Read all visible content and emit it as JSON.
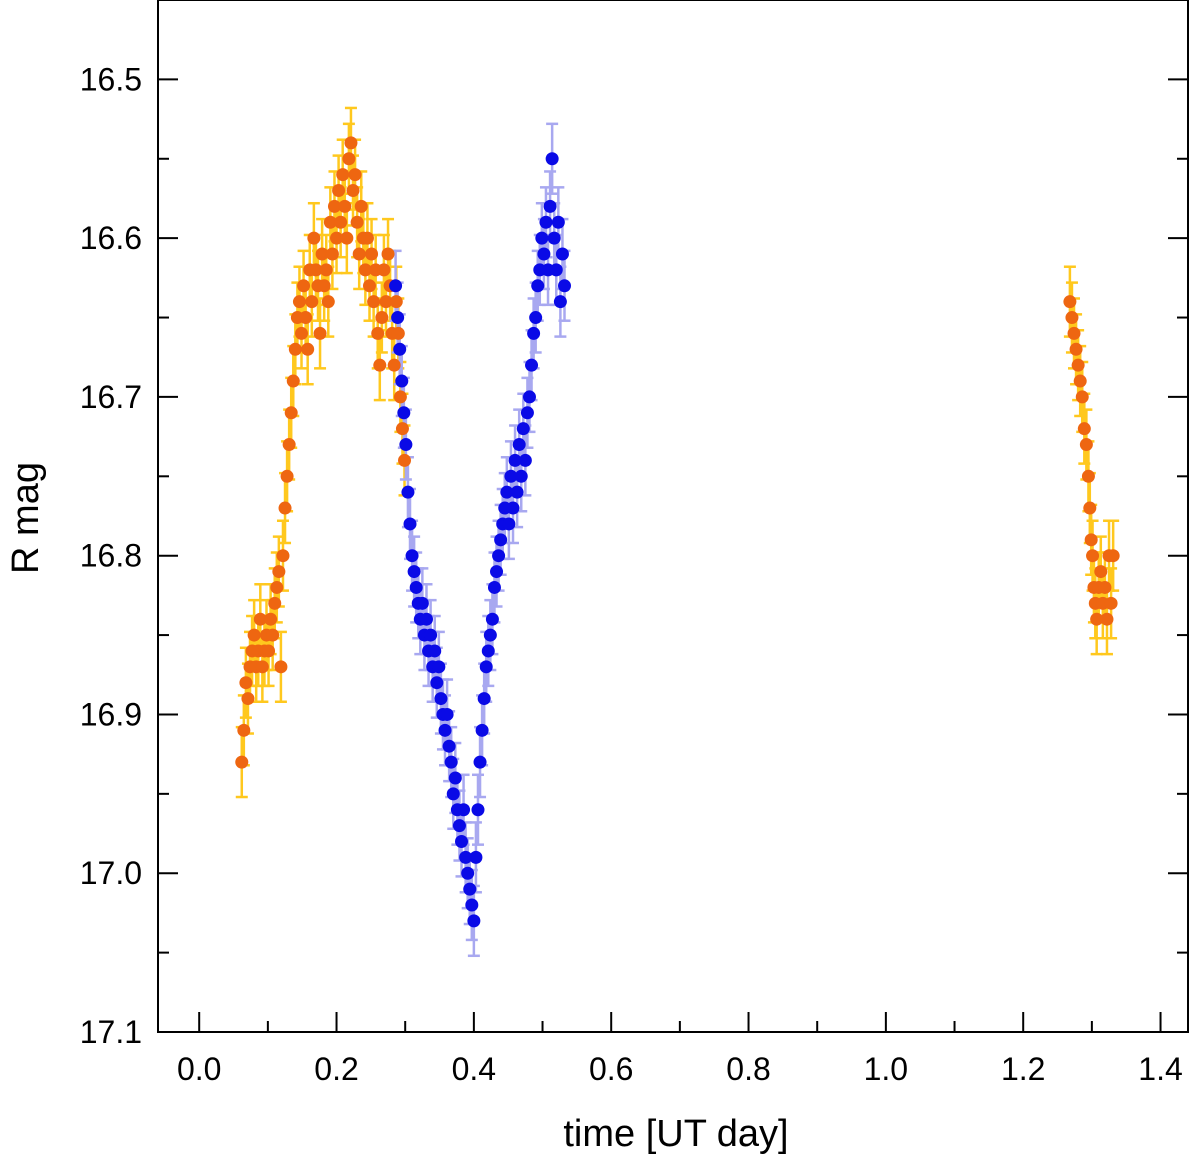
{
  "chart_data": {
    "type": "scatter",
    "title": "",
    "xlabel": "time [UT day]",
    "ylabel": "R mag",
    "xlim": [
      -0.06,
      1.44
    ],
    "ylim": [
      17.1,
      16.45
    ],
    "y_inverted": true,
    "x_ticks": [
      0.0,
      0.2,
      0.4,
      0.6,
      0.8,
      1.0,
      1.2,
      1.4
    ],
    "x_tick_labels": [
      "0.0",
      "0.2",
      "0.4",
      "0.6",
      "0.8",
      "1.0",
      "1.2",
      "1.4"
    ],
    "x_minor_ticks": [
      0.1,
      0.3,
      0.5,
      0.7,
      0.9,
      1.1,
      1.3
    ],
    "y_ticks": [
      16.5,
      16.6,
      16.7,
      16.8,
      16.9,
      17.0,
      17.1
    ],
    "y_tick_labels": [
      "16.5",
      "16.6",
      "16.7",
      "16.8",
      "16.9",
      "17.0",
      "17.1"
    ],
    "y_minor_ticks": [
      16.55,
      16.65,
      16.75,
      16.85,
      16.95,
      17.05
    ],
    "grid": false,
    "legend": "none",
    "series": [
      {
        "color": "#ee6611",
        "error_color": "#ffc81e",
        "error_typical": 0.022,
        "points": [
          [
            0.062,
            16.93
          ],
          [
            0.065,
            16.91
          ],
          [
            0.068,
            16.88
          ],
          [
            0.071,
            16.89
          ],
          [
            0.074,
            16.87
          ],
          [
            0.077,
            16.86
          ],
          [
            0.08,
            16.85
          ],
          [
            0.083,
            16.87
          ],
          [
            0.086,
            16.86
          ],
          [
            0.089,
            16.84
          ],
          [
            0.092,
            16.87
          ],
          [
            0.095,
            16.86
          ],
          [
            0.098,
            16.85
          ],
          [
            0.101,
            16.86
          ],
          [
            0.104,
            16.84
          ],
          [
            0.107,
            16.85
          ],
          [
            0.11,
            16.83
          ],
          [
            0.113,
            16.82
          ],
          [
            0.116,
            16.81
          ],
          [
            0.119,
            16.87
          ],
          [
            0.122,
            16.8
          ],
          [
            0.125,
            16.77
          ],
          [
            0.128,
            16.75
          ],
          [
            0.131,
            16.73
          ],
          [
            0.134,
            16.71
          ],
          [
            0.137,
            16.69
          ],
          [
            0.14,
            16.67
          ],
          [
            0.143,
            16.65
          ],
          [
            0.146,
            16.64
          ],
          [
            0.149,
            16.66
          ],
          [
            0.152,
            16.63
          ],
          [
            0.155,
            16.65
          ],
          [
            0.158,
            16.67
          ],
          [
            0.161,
            16.62
          ],
          [
            0.164,
            16.64
          ],
          [
            0.167,
            16.6
          ],
          [
            0.17,
            16.62
          ],
          [
            0.173,
            16.63
          ],
          [
            0.176,
            16.66
          ],
          [
            0.179,
            16.61
          ],
          [
            0.182,
            16.63
          ],
          [
            0.185,
            16.62
          ],
          [
            0.188,
            16.64
          ],
          [
            0.191,
            16.59
          ],
          [
            0.194,
            16.61
          ],
          [
            0.197,
            16.58
          ],
          [
            0.2,
            16.6
          ],
          [
            0.203,
            16.57
          ],
          [
            0.206,
            16.59
          ],
          [
            0.209,
            16.56
          ],
          [
            0.212,
            16.58
          ],
          [
            0.215,
            16.6
          ],
          [
            0.218,
            16.55
          ],
          [
            0.221,
            16.54
          ],
          [
            0.224,
            16.57
          ],
          [
            0.227,
            16.56
          ],
          [
            0.23,
            16.59
          ],
          [
            0.233,
            16.61
          ],
          [
            0.236,
            16.58
          ],
          [
            0.239,
            16.6
          ],
          [
            0.242,
            16.62
          ],
          [
            0.245,
            16.6
          ],
          [
            0.248,
            16.63
          ],
          [
            0.251,
            16.61
          ],
          [
            0.254,
            16.64
          ],
          [
            0.257,
            16.62
          ],
          [
            0.26,
            16.66
          ],
          [
            0.263,
            16.68
          ],
          [
            0.266,
            16.65
          ],
          [
            0.269,
            16.62
          ],
          [
            0.272,
            16.64
          ],
          [
            0.275,
            16.61
          ],
          [
            0.278,
            16.63
          ],
          [
            0.281,
            16.66
          ],
          [
            0.284,
            16.68
          ],
          [
            0.287,
            16.64
          ],
          [
            0.29,
            16.66
          ],
          [
            0.293,
            16.7
          ],
          [
            0.296,
            16.72
          ],
          [
            0.299,
            16.74
          ],
          [
            1.268,
            16.64
          ],
          [
            1.271,
            16.65
          ],
          [
            1.274,
            16.66
          ],
          [
            1.277,
            16.67
          ],
          [
            1.28,
            16.68
          ],
          [
            1.283,
            16.69
          ],
          [
            1.286,
            16.7
          ],
          [
            1.289,
            16.72
          ],
          [
            1.292,
            16.73
          ],
          [
            1.295,
            16.75
          ],
          [
            1.297,
            16.77
          ],
          [
            1.299,
            16.79
          ],
          [
            1.301,
            16.8
          ],
          [
            1.303,
            16.82
          ],
          [
            1.305,
            16.83
          ],
          [
            1.307,
            16.84
          ],
          [
            1.31,
            16.82
          ],
          [
            1.313,
            16.81
          ],
          [
            1.316,
            16.83
          ],
          [
            1.319,
            16.82
          ],
          [
            1.322,
            16.84
          ],
          [
            1.325,
            16.8
          ],
          [
            1.328,
            16.83
          ],
          [
            1.331,
            16.8
          ]
        ]
      },
      {
        "color": "#0a0ae6",
        "error_color": "#a8a8f0",
        "error_typical": 0.022,
        "points": [
          [
            0.286,
            16.63
          ],
          [
            0.289,
            16.65
          ],
          [
            0.292,
            16.67
          ],
          [
            0.295,
            16.69
          ],
          [
            0.298,
            16.71
          ],
          [
            0.301,
            16.73
          ],
          [
            0.304,
            16.76
          ],
          [
            0.307,
            16.78
          ],
          [
            0.31,
            16.8
          ],
          [
            0.313,
            16.81
          ],
          [
            0.316,
            16.82
          ],
          [
            0.319,
            16.83
          ],
          [
            0.322,
            16.84
          ],
          [
            0.325,
            16.83
          ],
          [
            0.328,
            16.85
          ],
          [
            0.331,
            16.84
          ],
          [
            0.334,
            16.86
          ],
          [
            0.337,
            16.85
          ],
          [
            0.34,
            16.87
          ],
          [
            0.343,
            16.86
          ],
          [
            0.346,
            16.88
          ],
          [
            0.349,
            16.87
          ],
          [
            0.352,
            16.89
          ],
          [
            0.355,
            16.9
          ],
          [
            0.358,
            16.91
          ],
          [
            0.361,
            16.9
          ],
          [
            0.364,
            16.92
          ],
          [
            0.367,
            16.93
          ],
          [
            0.37,
            16.95
          ],
          [
            0.373,
            16.94
          ],
          [
            0.376,
            16.96
          ],
          [
            0.379,
            16.97
          ],
          [
            0.382,
            16.98
          ],
          [
            0.385,
            16.96
          ],
          [
            0.388,
            16.99
          ],
          [
            0.391,
            17.0
          ],
          [
            0.394,
            17.01
          ],
          [
            0.397,
            17.02
          ],
          [
            0.4,
            17.03
          ],
          [
            0.403,
            16.99
          ],
          [
            0.406,
            16.96
          ],
          [
            0.409,
            16.93
          ],
          [
            0.412,
            16.91
          ],
          [
            0.415,
            16.89
          ],
          [
            0.418,
            16.87
          ],
          [
            0.421,
            16.86
          ],
          [
            0.424,
            16.85
          ],
          [
            0.427,
            16.84
          ],
          [
            0.43,
            16.82
          ],
          [
            0.433,
            16.81
          ],
          [
            0.436,
            16.8
          ],
          [
            0.439,
            16.79
          ],
          [
            0.442,
            16.78
          ],
          [
            0.445,
            16.77
          ],
          [
            0.448,
            16.76
          ],
          [
            0.451,
            16.78
          ],
          [
            0.454,
            16.75
          ],
          [
            0.457,
            16.77
          ],
          [
            0.46,
            16.74
          ],
          [
            0.463,
            16.76
          ],
          [
            0.466,
            16.73
          ],
          [
            0.469,
            16.75
          ],
          [
            0.472,
            16.72
          ],
          [
            0.475,
            16.74
          ],
          [
            0.478,
            16.71
          ],
          [
            0.481,
            16.7
          ],
          [
            0.484,
            16.68
          ],
          [
            0.487,
            16.66
          ],
          [
            0.49,
            16.65
          ],
          [
            0.493,
            16.63
          ],
          [
            0.496,
            16.62
          ],
          [
            0.499,
            16.6
          ],
          [
            0.502,
            16.61
          ],
          [
            0.505,
            16.59
          ],
          [
            0.508,
            16.62
          ],
          [
            0.511,
            16.58
          ],
          [
            0.514,
            16.55
          ],
          [
            0.517,
            16.6
          ],
          [
            0.52,
            16.62
          ],
          [
            0.523,
            16.59
          ],
          [
            0.526,
            16.64
          ],
          [
            0.529,
            16.61
          ],
          [
            0.532,
            16.63
          ]
        ]
      }
    ]
  }
}
